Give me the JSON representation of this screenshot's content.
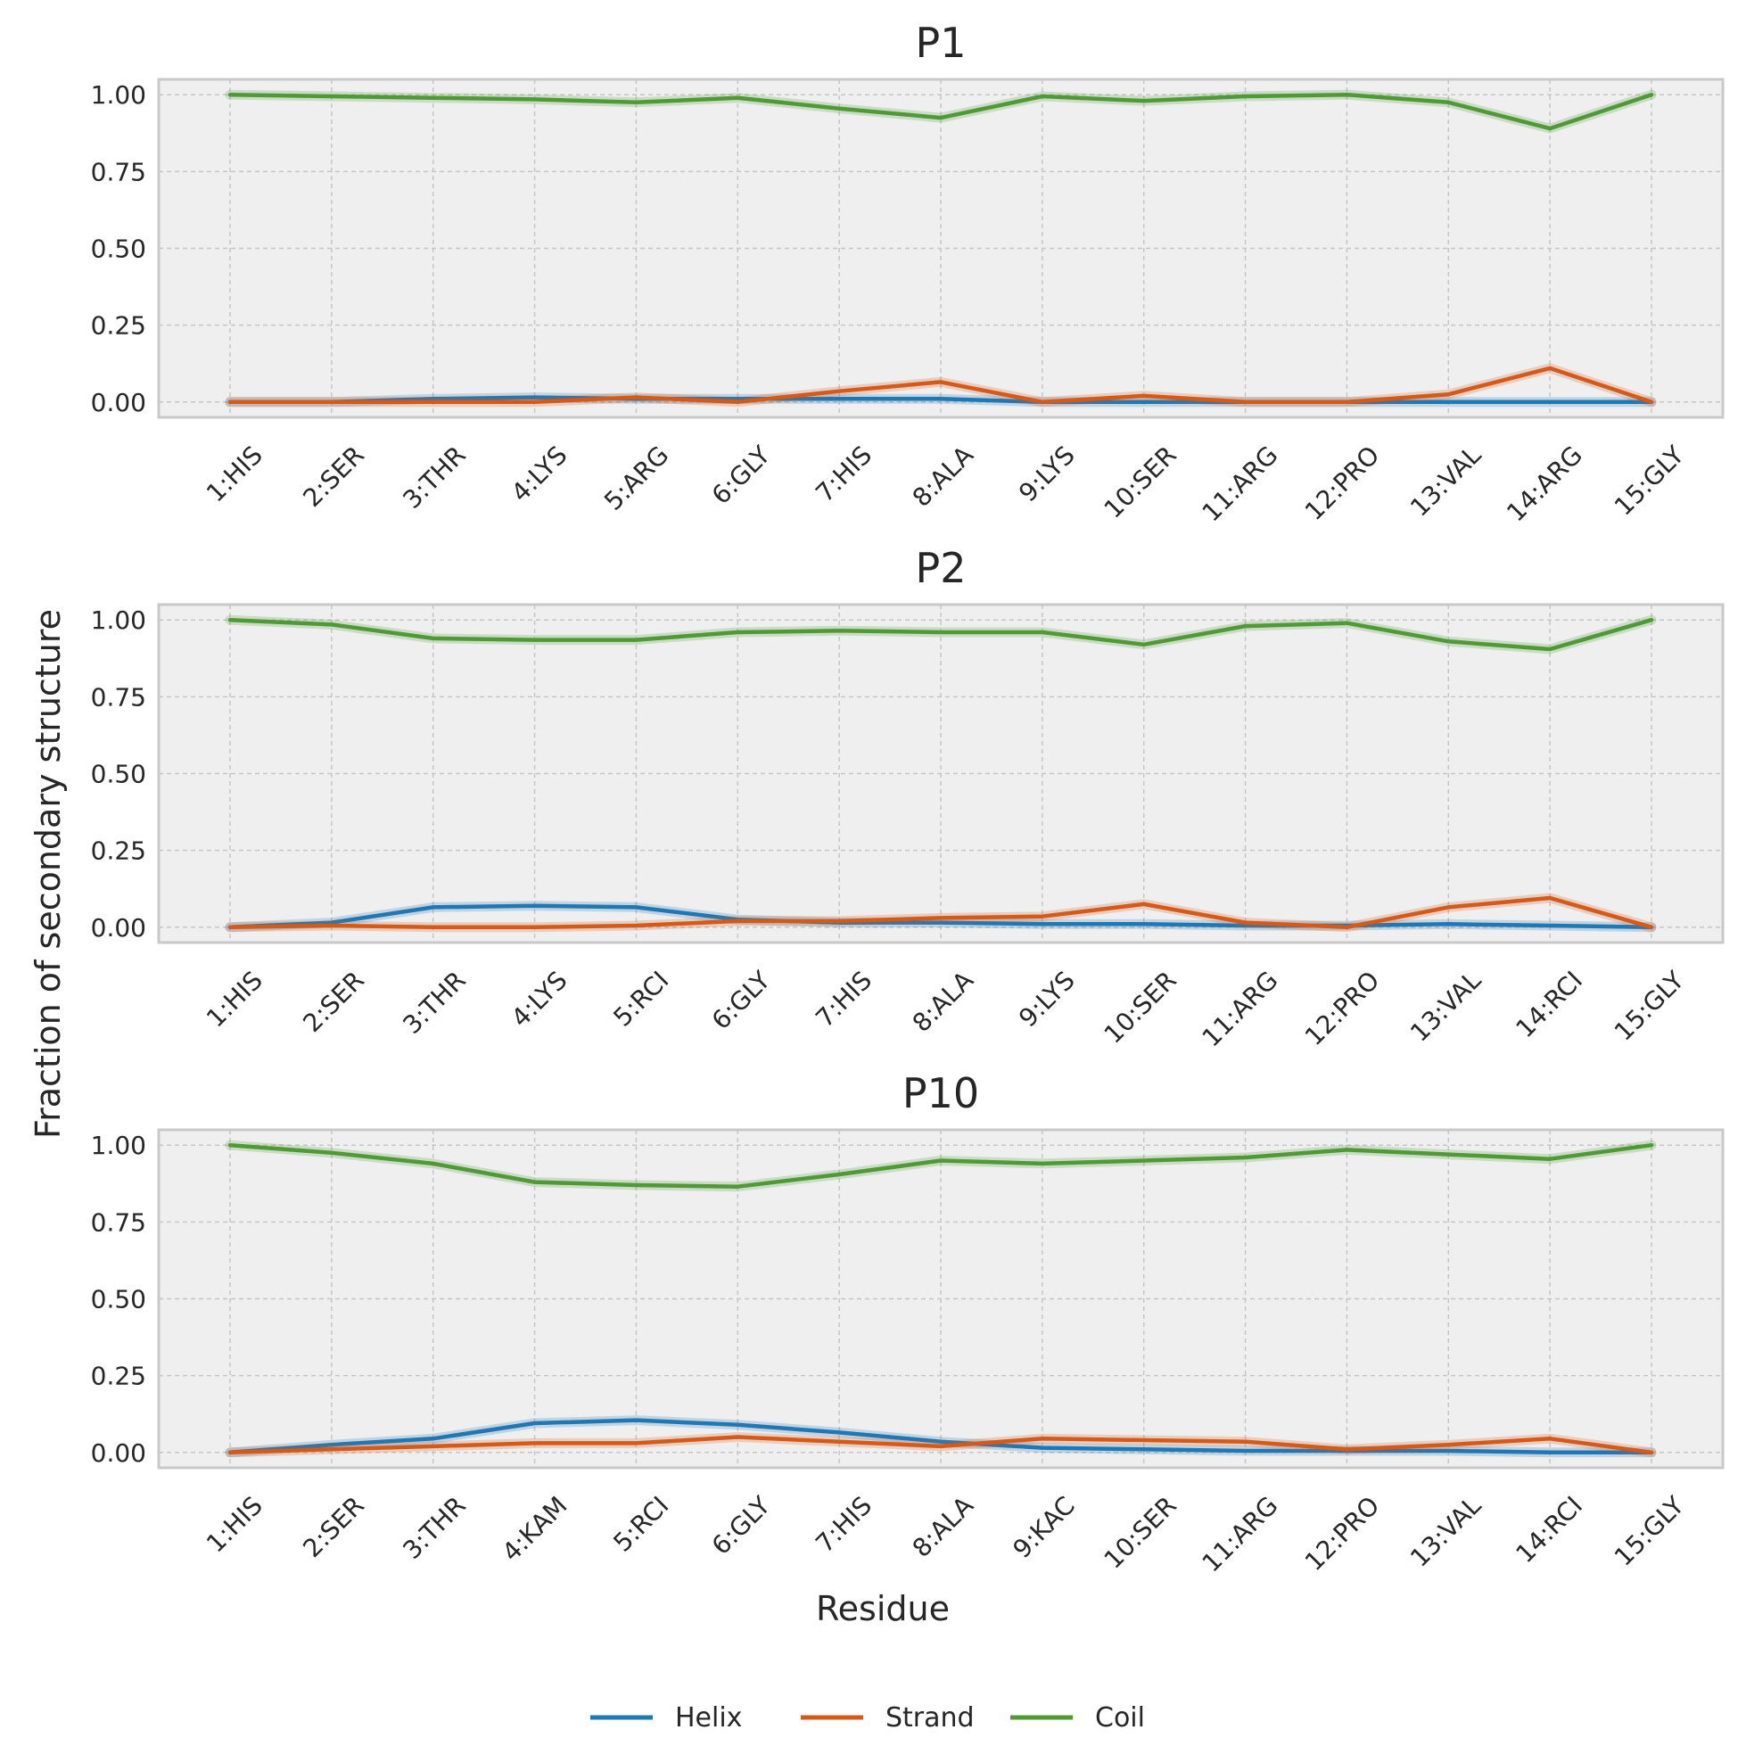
{
  "chart_data": [
    {
      "type": "line",
      "title": "P1",
      "categories": [
        "1:HIS",
        "2:SER",
        "3:THR",
        "4:LYS",
        "5:ARG",
        "6:GLY",
        "7:HIS",
        "8:ALA",
        "9:LYS",
        "10:SER",
        "11:ARG",
        "12:PRO",
        "13:VAL",
        "14:ARG",
        "15:GLY"
      ],
      "yticks": [
        "0.00",
        "0.25",
        "0.50",
        "0.75",
        "1.00"
      ],
      "ylim": [
        -0.05,
        1.05
      ],
      "grid": true,
      "series": [
        {
          "name": "Helix",
          "values": [
            0.0,
            0.0,
            0.01,
            0.015,
            0.01,
            0.01,
            0.01,
            0.01,
            0.0,
            0.0,
            0.0,
            0.0,
            0.0,
            0.0,
            0.0
          ]
        },
        {
          "name": "Strand",
          "values": [
            0.0,
            0.0,
            0.0,
            0.0,
            0.015,
            0.0,
            0.035,
            0.065,
            0.0,
            0.02,
            0.0,
            0.0,
            0.025,
            0.11,
            0.0
          ]
        },
        {
          "name": "Coil",
          "values": [
            1.0,
            0.995,
            0.99,
            0.985,
            0.975,
            0.99,
            0.955,
            0.925,
            0.995,
            0.98,
            0.995,
            1.0,
            0.975,
            0.89,
            1.0
          ]
        }
      ]
    },
    {
      "type": "line",
      "title": "P2",
      "categories": [
        "1:HIS",
        "2:SER",
        "3:THR",
        "4:LYS",
        "5:RCI",
        "6:GLY",
        "7:HIS",
        "8:ALA",
        "9:LYS",
        "10:SER",
        "11:ARG",
        "12:PRO",
        "13:VAL",
        "14:RCI",
        "15:GLY"
      ],
      "yticks": [
        "0.00",
        "0.25",
        "0.50",
        "0.75",
        "1.00"
      ],
      "ylim": [
        -0.05,
        1.05
      ],
      "grid": true,
      "series": [
        {
          "name": "Helix",
          "values": [
            0.0,
            0.015,
            0.065,
            0.07,
            0.065,
            0.025,
            0.015,
            0.015,
            0.01,
            0.01,
            0.005,
            0.005,
            0.01,
            0.005,
            0.0
          ]
        },
        {
          "name": "Strand",
          "values": [
            0.0,
            0.005,
            0.0,
            0.0,
            0.005,
            0.02,
            0.02,
            0.03,
            0.035,
            0.075,
            0.015,
            0.0,
            0.065,
            0.095,
            0.0
          ]
        },
        {
          "name": "Coil",
          "values": [
            1.0,
            0.985,
            0.94,
            0.935,
            0.935,
            0.96,
            0.965,
            0.96,
            0.96,
            0.92,
            0.98,
            0.99,
            0.93,
            0.905,
            1.0
          ]
        }
      ]
    },
    {
      "type": "line",
      "title": "P10",
      "categories": [
        "1:HIS",
        "2:SER",
        "3:THR",
        "4:KAM",
        "5:RCI",
        "6:GLY",
        "7:HIS",
        "8:ALA",
        "9:KAC",
        "10:SER",
        "11:ARG",
        "12:PRO",
        "13:VAL",
        "14:RCI",
        "15:GLY"
      ],
      "yticks": [
        "0.00",
        "0.25",
        "0.50",
        "0.75",
        "1.00"
      ],
      "ylim": [
        -0.05,
        1.05
      ],
      "grid": true,
      "series": [
        {
          "name": "Helix",
          "values": [
            0.0,
            0.025,
            0.045,
            0.095,
            0.105,
            0.09,
            0.065,
            0.035,
            0.015,
            0.01,
            0.005,
            0.005,
            0.005,
            0.0,
            0.0
          ]
        },
        {
          "name": "Strand",
          "values": [
            0.0,
            0.01,
            0.02,
            0.03,
            0.03,
            0.05,
            0.035,
            0.02,
            0.045,
            0.04,
            0.035,
            0.01,
            0.025,
            0.045,
            0.0
          ]
        },
        {
          "name": "Coil",
          "values": [
            1.0,
            0.975,
            0.94,
            0.88,
            0.87,
            0.865,
            0.905,
            0.95,
            0.94,
            0.95,
            0.96,
            0.985,
            0.97,
            0.955,
            1.0
          ]
        }
      ]
    }
  ],
  "xlabel": "Residue",
  "ylabel": "Fraction of secondary structure",
  "legend": {
    "position": "bottom-center",
    "items": [
      {
        "name": "Helix",
        "color": "#1f77b4"
      },
      {
        "name": "Strand",
        "color": "#d45a1a"
      },
      {
        "name": "Coil",
        "color": "#4f9a35"
      }
    ]
  },
  "colors": {
    "plot_background": "#efefef",
    "grid": "#c6c6c6",
    "frame": "#c8c8c8"
  }
}
